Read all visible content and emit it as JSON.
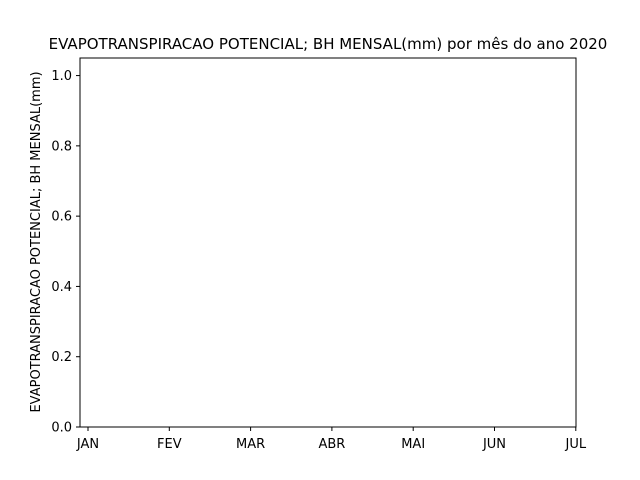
{
  "chart_data": {
    "type": "line",
    "title": "EVAPOTRANSPIRACAO POTENCIAL; BH MENSAL(mm) por mês do ano 2020",
    "xlabel": "",
    "ylabel": "EVAPOTRANSPIRACAO POTENCIAL; BH MENSAL(mm)",
    "categories": [
      "JAN",
      "FEV",
      "MAR",
      "ABR",
      "MAI",
      "JUN",
      "JUL"
    ],
    "ylim": [
      0,
      1.05
    ],
    "yticks": [
      "0.0",
      "0.2",
      "0.4",
      "0.6",
      "0.8",
      "1.0"
    ],
    "series": [],
    "grid": false,
    "legend": "none"
  }
}
